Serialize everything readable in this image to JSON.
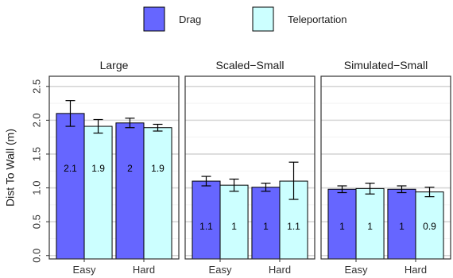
{
  "chart_data": {
    "type": "bar",
    "ylabel": "Dist To Wall (m)",
    "xlabel": "",
    "ylim": [
      -0.05,
      2.65
    ],
    "yticks": [
      "0.0",
      "0.5",
      "1.0",
      "1.5",
      "2.0",
      "2.5"
    ],
    "ytick_values": [
      0,
      0.5,
      1.0,
      1.5,
      2.0,
      2.5
    ],
    "grid": true,
    "legend_position": "top-center",
    "categories": [
      "Easy",
      "Hard"
    ],
    "series": [
      {
        "name": "Drag",
        "color": "#6666ff"
      },
      {
        "name": "Teleportation",
        "color": "#ccffff"
      }
    ],
    "panels": [
      {
        "title": "Large",
        "values": {
          "Drag": [
            2.1,
            1.96
          ],
          "Teleportation": [
            1.91,
            1.89
          ]
        },
        "errors": {
          "Drag": [
            [
              1.91,
              2.29
            ],
            [
              1.89,
              2.03
            ]
          ],
          "Teleportation": [
            [
              1.81,
              2.01
            ],
            [
              1.84,
              1.94
            ]
          ]
        },
        "labels": {
          "Drag": [
            "2.1",
            "2"
          ],
          "Teleportation": [
            "1.9",
            "1.9"
          ]
        }
      },
      {
        "title": "Scaled−Small",
        "values": {
          "Drag": [
            1.1,
            1.01
          ],
          "Teleportation": [
            1.04,
            1.1
          ]
        },
        "errors": {
          "Drag": [
            [
              1.03,
              1.17
            ],
            [
              0.95,
              1.07
            ]
          ],
          "Teleportation": [
            [
              0.95,
              1.13
            ],
            [
              0.83,
              1.38
            ]
          ]
        },
        "labels": {
          "Drag": [
            "1.1",
            "1"
          ],
          "Teleportation": [
            "1",
            "1.1"
          ]
        }
      },
      {
        "title": "Simulated−Small",
        "values": {
          "Drag": [
            0.98,
            0.98
          ],
          "Teleportation": [
            0.99,
            0.94
          ]
        },
        "errors": {
          "Drag": [
            [
              0.93,
              1.03
            ],
            [
              0.93,
              1.03
            ]
          ],
          "Teleportation": [
            [
              0.91,
              1.07
            ],
            [
              0.87,
              1.01
            ]
          ]
        },
        "labels": {
          "Drag": [
            "1",
            "1"
          ],
          "Teleportation": [
            "1",
            "0.9"
          ]
        }
      }
    ]
  }
}
